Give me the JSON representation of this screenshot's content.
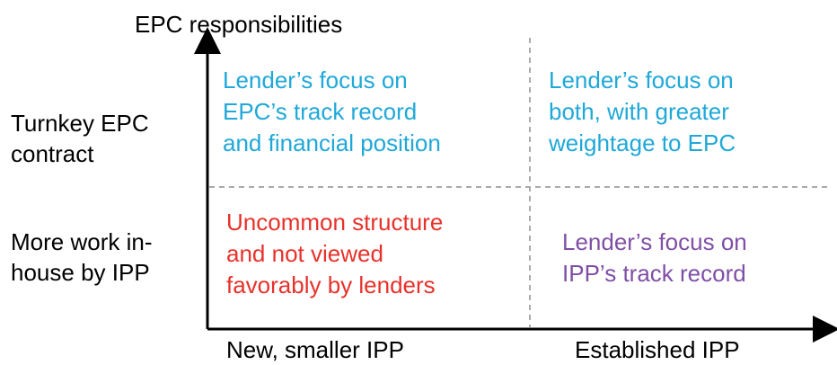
{
  "y_axis_title": "EPC responsibilities",
  "y_labels": [
    [
      "Turnkey EPC",
      "contract"
    ],
    [
      "More work in-",
      "house by IPP"
    ]
  ],
  "x_labels": [
    "New, smaller IPP",
    "Established IPP"
  ],
  "quadrants": {
    "top_left": [
      "Lender’s focus on",
      "EPC’s track record",
      "and financial position"
    ],
    "top_right": [
      "Lender’s focus on",
      "both, with greater",
      "weightage to EPC"
    ],
    "bottom_left": [
      "Uncommon structure",
      "and not viewed",
      "favorably by lenders"
    ],
    "bottom_right": [
      "Lender’s focus on",
      "IPP’s track record"
    ]
  }
}
